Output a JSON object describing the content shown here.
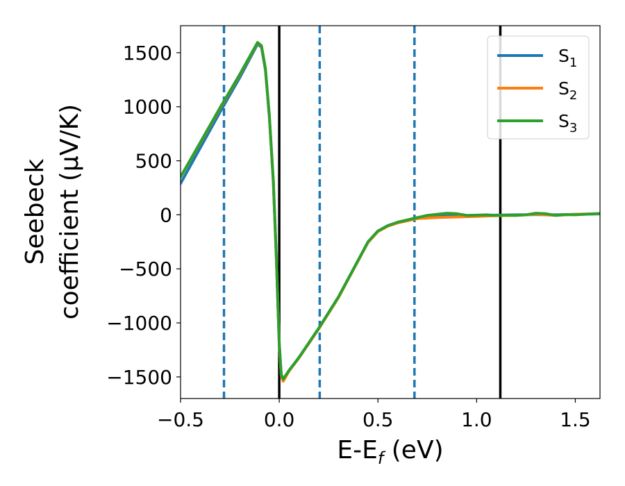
{
  "chart_data": {
    "type": "line",
    "xlabel": {
      "main": "E-E",
      "sub": "f",
      "tail": " (eV)"
    },
    "ylabel_lines": [
      "Seebeck",
      "coefficient  (μV/K)"
    ],
    "xlim": [
      -0.5,
      1.625
    ],
    "ylim": [
      -1700,
      1750
    ],
    "xticks": [
      -0.5,
      0.0,
      0.5,
      1.0,
      1.5
    ],
    "xtick_labels": [
      "−0.5",
      "0.0",
      "0.5",
      "1.0",
      "1.5"
    ],
    "yticks": [
      1500,
      1000,
      500,
      0,
      -500,
      -1000,
      -1500
    ],
    "ytick_labels": [
      "1500",
      "1000",
      "500",
      "0",
      "−500",
      "−1000",
      "−1500"
    ],
    "grid": false,
    "legend_position": "top-right",
    "vlines_dashed": {
      "color": "#1f77b4",
      "x": [
        -0.28,
        0.205,
        0.685
      ]
    },
    "vlines_solid": {
      "color": "#000000",
      "x": [
        0.0,
        1.12
      ]
    },
    "series": [
      {
        "name": "S",
        "sub": "1",
        "color": "#1f77b4",
        "points": [
          [
            -0.5,
            290
          ],
          [
            -0.4,
            620
          ],
          [
            -0.3,
            950
          ],
          [
            -0.2,
            1270
          ],
          [
            -0.11,
            1580
          ],
          [
            -0.09,
            1550
          ],
          [
            -0.07,
            1340
          ],
          [
            -0.05,
            900
          ],
          [
            -0.03,
            300
          ],
          [
            -0.015,
            -400
          ],
          [
            0.0,
            -1200
          ],
          [
            0.01,
            -1480
          ],
          [
            0.02,
            -1525
          ],
          [
            0.05,
            -1440
          ],
          [
            0.1,
            -1320
          ],
          [
            0.2,
            -1050
          ],
          [
            0.3,
            -760
          ],
          [
            0.4,
            -420
          ],
          [
            0.45,
            -250
          ],
          [
            0.5,
            -150
          ],
          [
            0.55,
            -100
          ],
          [
            0.6,
            -70
          ],
          [
            0.7,
            -30
          ],
          [
            0.8,
            -15
          ],
          [
            0.9,
            -8
          ],
          [
            1.0,
            -5
          ],
          [
            1.1,
            -3
          ],
          [
            1.2,
            0
          ],
          [
            1.3,
            2
          ],
          [
            1.4,
            0
          ],
          [
            1.5,
            4
          ],
          [
            1.625,
            8
          ]
        ]
      },
      {
        "name": "S",
        "sub": "2",
        "color": "#ff7f0e",
        "points": [
          [
            -0.5,
            350
          ],
          [
            -0.4,
            665
          ],
          [
            -0.3,
            985
          ],
          [
            -0.2,
            1295
          ],
          [
            -0.11,
            1590
          ],
          [
            -0.09,
            1560
          ],
          [
            -0.07,
            1350
          ],
          [
            -0.05,
            910
          ],
          [
            -0.03,
            310
          ],
          [
            -0.015,
            -390
          ],
          [
            0.0,
            -1190
          ],
          [
            0.01,
            -1490
          ],
          [
            0.02,
            -1540
          ],
          [
            0.05,
            -1445
          ],
          [
            0.1,
            -1325
          ],
          [
            0.2,
            -1055
          ],
          [
            0.3,
            -765
          ],
          [
            0.4,
            -425
          ],
          [
            0.45,
            -255
          ],
          [
            0.5,
            -155
          ],
          [
            0.55,
            -105
          ],
          [
            0.6,
            -75
          ],
          [
            0.7,
            -35
          ],
          [
            0.8,
            -25
          ],
          [
            0.9,
            -20
          ],
          [
            1.0,
            -15
          ],
          [
            1.1,
            -8
          ],
          [
            1.2,
            -5
          ],
          [
            1.3,
            5
          ],
          [
            1.4,
            -5
          ],
          [
            1.5,
            5
          ],
          [
            1.625,
            10
          ]
        ]
      },
      {
        "name": "S",
        "sub": "3",
        "color": "#2ca02c",
        "points": [
          [
            -0.5,
            350
          ],
          [
            -0.4,
            670
          ],
          [
            -0.3,
            990
          ],
          [
            -0.2,
            1300
          ],
          [
            -0.11,
            1595
          ],
          [
            -0.09,
            1565
          ],
          [
            -0.07,
            1355
          ],
          [
            -0.05,
            915
          ],
          [
            -0.03,
            315
          ],
          [
            -0.015,
            -385
          ],
          [
            0.0,
            -1180
          ],
          [
            0.01,
            -1480
          ],
          [
            0.02,
            -1520
          ],
          [
            0.05,
            -1440
          ],
          [
            0.1,
            -1320
          ],
          [
            0.2,
            -1050
          ],
          [
            0.3,
            -760
          ],
          [
            0.4,
            -420
          ],
          [
            0.45,
            -250
          ],
          [
            0.5,
            -150
          ],
          [
            0.55,
            -100
          ],
          [
            0.6,
            -68
          ],
          [
            0.7,
            -25
          ],
          [
            0.75,
            -5
          ],
          [
            0.8,
            5
          ],
          [
            0.85,
            15
          ],
          [
            0.9,
            10
          ],
          [
            0.95,
            -5
          ],
          [
            1.0,
            -3
          ],
          [
            1.05,
            0
          ],
          [
            1.1,
            -5
          ],
          [
            1.15,
            -3
          ],
          [
            1.2,
            -5
          ],
          [
            1.25,
            0
          ],
          [
            1.3,
            15
          ],
          [
            1.35,
            10
          ],
          [
            1.4,
            -5
          ],
          [
            1.45,
            2
          ],
          [
            1.5,
            0
          ],
          [
            1.625,
            12
          ]
        ]
      }
    ]
  }
}
